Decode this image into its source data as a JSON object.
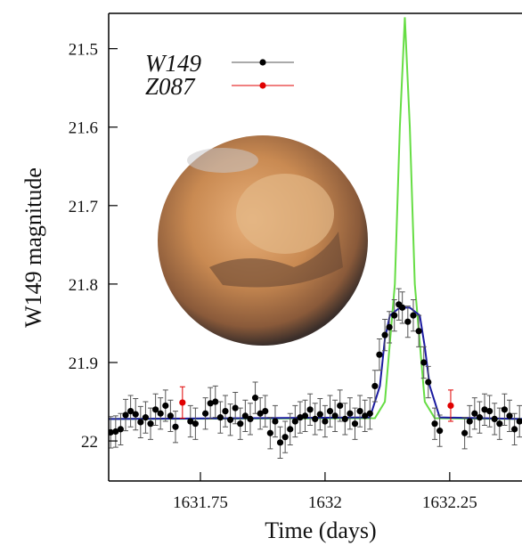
{
  "chart_data": {
    "type": "scatter",
    "xlabel": "Time (days)",
    "ylabel": "W149 magnitude",
    "xlim": [
      1631.566,
      1632.395
    ],
    "ylim": [
      22.051,
      21.455
    ],
    "inverted_y": true,
    "xticks": [
      1631.75,
      1632,
      1632.25
    ],
    "yticks": [
      21.5,
      21.6,
      21.7,
      21.8,
      21.9,
      22
    ],
    "legend": "upper left",
    "series": [
      {
        "name": "W149",
        "color": "#000000",
        "x": [
          1631.57,
          1631.58,
          1631.59,
          1631.6,
          1631.61,
          1631.62,
          1631.63,
          1631.64,
          1631.65,
          1631.66,
          1631.67,
          1631.68,
          1631.69,
          1631.7,
          1631.73,
          1631.74,
          1631.76,
          1631.77,
          1631.78,
          1631.79,
          1631.8,
          1631.81,
          1631.82,
          1631.83,
          1631.84,
          1631.85,
          1631.86,
          1631.87,
          1631.88,
          1631.89,
          1631.9,
          1631.91,
          1631.92,
          1631.93,
          1631.94,
          1631.95,
          1631.96,
          1631.97,
          1631.98,
          1631.99,
          1632.0,
          1632.01,
          1632.02,
          1632.03,
          1632.04,
          1632.05,
          1632.06,
          1632.07,
          1632.08,
          1632.09,
          1632.1,
          1632.109,
          1632.12,
          1632.129,
          1632.139,
          1632.148,
          1632.155,
          1632.166,
          1632.177,
          1632.188,
          1632.198,
          1632.207,
          1632.22,
          1632.23,
          1632.28,
          1632.29,
          1632.3,
          1632.31,
          1632.32,
          1632.33,
          1632.34,
          1632.35,
          1632.36,
          1632.37,
          1632.38,
          1632.39
        ],
        "values": [
          21.989,
          21.988,
          21.985,
          21.967,
          21.962,
          21.966,
          21.976,
          21.97,
          21.978,
          21.96,
          21.965,
          21.955,
          21.968,
          21.982,
          21.975,
          21.978,
          21.965,
          21.952,
          21.95,
          21.97,
          21.962,
          21.973,
          21.958,
          21.978,
          21.968,
          21.972,
          21.945,
          21.965,
          21.962,
          21.99,
          21.975,
          22.002,
          21.995,
          21.985,
          21.975,
          21.97,
          21.968,
          21.96,
          21.972,
          21.966,
          21.975,
          21.962,
          21.968,
          21.955,
          21.972,
          21.965,
          21.978,
          21.962,
          21.968,
          21.965,
          21.93,
          21.89,
          21.865,
          21.855,
          21.84,
          21.826,
          21.83,
          21.848,
          21.84,
          21.86,
          21.9,
          21.925,
          21.978,
          21.987,
          21.99,
          21.975,
          21.965,
          21.97,
          21.96,
          21.962,
          21.972,
          21.978,
          21.96,
          21.968,
          21.985,
          21.975
        ],
        "errors": [
          0.02,
          0.02,
          0.02,
          0.02,
          0.02,
          0.02,
          0.02,
          0.02,
          0.02,
          0.02,
          0.02,
          0.02,
          0.02,
          0.02,
          0.02,
          0.02,
          0.02,
          0.02,
          0.02,
          0.02,
          0.02,
          0.02,
          0.02,
          0.02,
          0.02,
          0.02,
          0.02,
          0.02,
          0.02,
          0.02,
          0.02,
          0.02,
          0.02,
          0.02,
          0.02,
          0.02,
          0.02,
          0.02,
          0.02,
          0.02,
          0.02,
          0.02,
          0.02,
          0.02,
          0.02,
          0.02,
          0.02,
          0.02,
          0.02,
          0.02,
          0.02,
          0.02,
          0.02,
          0.02,
          0.02,
          0.02,
          0.02,
          0.02,
          0.02,
          0.02,
          0.02,
          0.02,
          0.02,
          0.02,
          0.02,
          0.02,
          0.02,
          0.02,
          0.02,
          0.02,
          0.02,
          0.02,
          0.02,
          0.02,
          0.02,
          0.02
        ]
      },
      {
        "name": "Z087",
        "color": "#e00000",
        "x": [
          1631.714,
          1632.252
        ],
        "values": [
          21.951,
          21.955
        ],
        "errors": [
          0.02,
          0.02
        ]
      },
      {
        "color": "#66dd44",
        "x": [
          1631.566,
          1632.1,
          1632.12,
          1632.14,
          1632.15,
          1632.16,
          1632.17,
          1632.18,
          1632.2,
          1632.22,
          1632.395
        ],
        "values": [
          21.972,
          21.971,
          21.95,
          21.8,
          21.6,
          21.46,
          21.6,
          21.8,
          21.95,
          21.971,
          21.972
        ]
      },
      {
        "color": "#1a1aa0",
        "x": [
          1631.566,
          1632.09,
          1632.11,
          1632.12,
          1632.13,
          1632.15,
          1632.17,
          1632.19,
          1632.2,
          1632.21,
          1632.23,
          1632.395
        ],
        "values": [
          21.972,
          21.97,
          21.93,
          21.87,
          21.84,
          21.83,
          21.83,
          21.84,
          21.88,
          21.93,
          21.97,
          21.972
        ]
      }
    ]
  }
}
